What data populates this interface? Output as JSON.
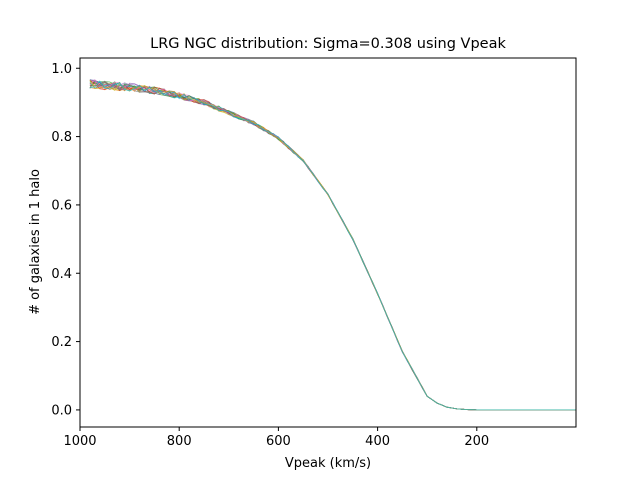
{
  "chart_data": {
    "type": "line",
    "title": "LRG NGC distribution: Sigma=0.308 using Vpeak",
    "xlabel": "Vpeak (km/s)",
    "ylabel": "# of galaxies in 1 halo",
    "x_inverted": true,
    "xlim": [
      1000,
      0
    ],
    "ylim": [
      -0.05,
      1.03
    ],
    "xticks": [
      1000,
      800,
      600,
      400,
      200
    ],
    "xtick_labels": [
      "1000",
      "800",
      "600",
      "400",
      "200"
    ],
    "yticks": [
      0.0,
      0.2,
      0.4,
      0.6,
      0.8,
      1.0
    ],
    "ytick_labels": [
      "0.0",
      "0.2",
      "0.4",
      "0.6",
      "0.8",
      "1.0"
    ],
    "grid": false,
    "legend": "none",
    "x_data_range": [
      980,
      0
    ],
    "series_base": {
      "x": [
        980,
        950,
        900,
        850,
        800,
        750,
        700,
        650,
        600,
        550,
        500,
        450,
        400,
        350,
        300,
        280,
        260,
        240,
        220,
        200,
        150,
        100,
        50,
        0
      ],
      "y": [
        0.955,
        0.95,
        0.945,
        0.935,
        0.92,
        0.9,
        0.87,
        0.84,
        0.795,
        0.73,
        0.63,
        0.5,
        0.34,
        0.17,
        0.04,
        0.02,
        0.008,
        0.003,
        0.001,
        0.0,
        0.0,
        0.0,
        0.0,
        0.0
      ]
    },
    "series_count": 20,
    "series_colors": [
      "#1f77b4",
      "#ff7f0e",
      "#2ca02c",
      "#d62728",
      "#9467bd",
      "#8c564b",
      "#e377c2",
      "#7f7f7f",
      "#bcbd22",
      "#17becf"
    ]
  }
}
